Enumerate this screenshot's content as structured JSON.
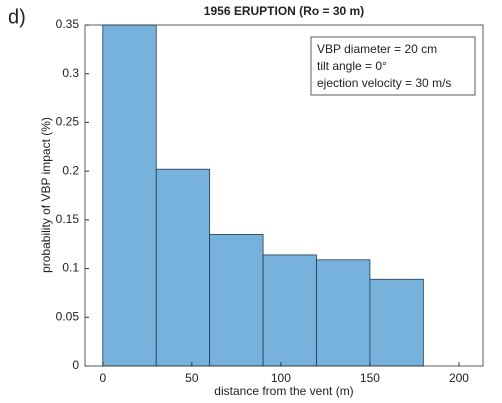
{
  "chart_data": {
    "type": "histogram",
    "panel_label": "d)",
    "title": "1956 ERUPTION (Ro = 30 m)",
    "xlabel": "distance from the vent (m)",
    "ylabel": "probability of VBP impact (%)",
    "annotations": [
      "VBP diameter = 20 cm",
      "tilt angle = 0°",
      "ejection velocity = 30 m/s"
    ],
    "bins": [
      0,
      30,
      60,
      90,
      120,
      150,
      180
    ],
    "values": [
      0.35,
      0.202,
      0.135,
      0.114,
      0.109,
      0.089
    ],
    "color": "#77b2dc",
    "xlim": [
      -10,
      213.5
    ],
    "xticks": [
      0,
      50,
      100,
      150,
      200
    ],
    "ylim": [
      0,
      0.35
    ],
    "yticks": [
      0,
      0.05,
      0.1,
      0.15,
      0.2,
      0.25,
      0.3,
      0.35
    ]
  }
}
